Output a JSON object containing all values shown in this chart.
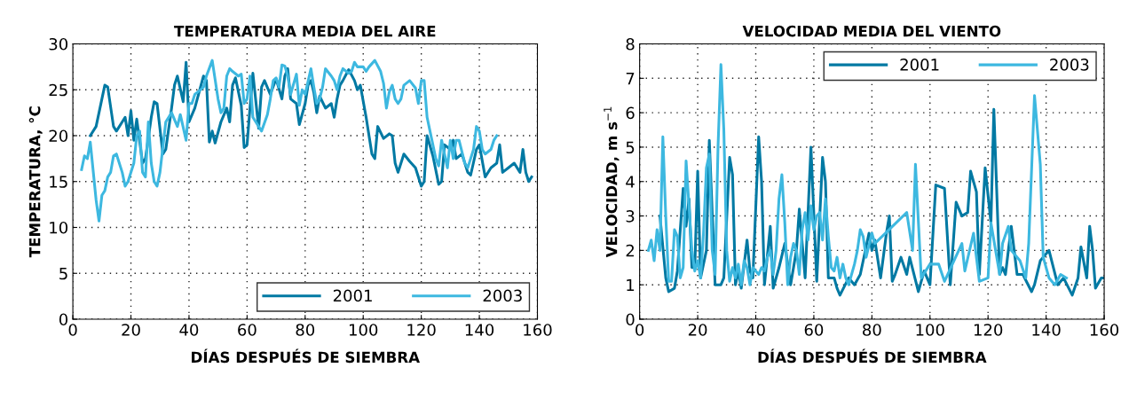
{
  "chart_data": [
    {
      "type": "line",
      "title": "TEMPERATURA MEDIA DEL AIRE",
      "xlabel": "DÍAS DESPUÉS DE SIEMBRA",
      "ylabel": "TEMPERATURA, °C",
      "xlim": [
        0,
        160
      ],
      "xticks": [
        0,
        20,
        40,
        60,
        80,
        100,
        120,
        140,
        160
      ],
      "ylim": [
        0,
        30
      ],
      "yticks": [
        0,
        5,
        10,
        15,
        20,
        25,
        30
      ],
      "grid": true,
      "legend": "bottom right",
      "line_style": "solid",
      "marker": "none",
      "series": [
        {
          "name": "2001",
          "color": "#0079a3",
          "x": [
            6,
            8,
            10,
            11,
            12,
            14,
            15,
            17,
            18,
            19,
            20,
            21,
            22,
            24,
            25,
            27,
            28,
            29,
            31,
            32,
            34,
            35,
            36,
            38,
            39,
            40,
            42,
            45,
            46,
            47,
            48,
            49,
            51,
            53,
            54,
            55,
            56,
            58,
            59,
            60,
            61,
            62,
            64,
            65,
            66,
            68,
            70,
            72,
            73,
            74,
            75,
            77,
            78,
            80,
            81,
            82,
            83,
            84,
            85,
            87,
            89,
            90,
            91,
            92,
            93,
            95,
            97,
            98,
            99,
            101,
            103,
            104,
            105,
            107,
            109,
            110,
            111,
            112,
            114,
            116,
            118,
            120,
            121,
            122,
            124,
            126,
            127,
            128,
            130,
            131,
            132,
            134,
            136,
            137,
            139,
            140,
            142,
            144,
            146,
            147,
            148,
            150,
            152,
            154,
            155,
            156,
            157,
            158
          ],
          "values": [
            20,
            21,
            24,
            25.5,
            25.3,
            21,
            20.5,
            21.5,
            22,
            20,
            22.7,
            19.5,
            21.8,
            17,
            17.5,
            22,
            23.7,
            23.5,
            18,
            18.5,
            23,
            25.5,
            26.5,
            23.7,
            28,
            21.5,
            23,
            26.5,
            26,
            19.3,
            20.5,
            19.2,
            21.5,
            23,
            21.5,
            25.5,
            26.3,
            23.3,
            18.7,
            19,
            23,
            26.8,
            20.8,
            25.3,
            26,
            24.5,
            26.2,
            24,
            26.5,
            27.3,
            24,
            23.5,
            21.2,
            23.5,
            25.5,
            26,
            24.7,
            22.5,
            24.3,
            23,
            23.5,
            22,
            24,
            25.5,
            26,
            27.2,
            26,
            25,
            25.5,
            22,
            18,
            17.5,
            21,
            19.7,
            20.2,
            20,
            17,
            16,
            18,
            17.2,
            16.5,
            14.5,
            15,
            20,
            17.8,
            14.7,
            15,
            19,
            18.5,
            19.5,
            17.5,
            18,
            16,
            15.7,
            18.5,
            19,
            15.5,
            16.5,
            17,
            19,
            16,
            16.5,
            17,
            16,
            18.5,
            16,
            15,
            15.5
          ]
        },
        {
          "name": "2003",
          "color": "#3db8e0",
          "x": [
            3,
            4,
            5,
            6,
            8,
            9,
            10,
            11,
            12,
            13,
            14,
            15,
            17,
            18,
            19,
            21,
            22,
            23,
            24,
            25,
            26,
            27,
            28,
            29,
            30,
            32,
            34,
            36,
            37,
            39,
            40,
            41,
            42,
            44,
            45,
            46,
            48,
            50,
            51,
            52,
            53,
            54,
            55,
            57,
            58,
            59,
            60,
            61,
            62,
            63,
            65,
            67,
            68,
            69,
            70,
            71,
            72,
            73,
            74,
            75,
            77,
            78,
            79,
            80,
            82,
            83,
            84,
            85,
            86,
            87,
            89,
            90,
            91,
            92,
            93,
            95,
            96,
            97,
            98,
            100,
            101,
            102,
            104,
            106,
            107,
            108,
            109,
            110,
            111,
            112,
            113,
            114,
            116,
            118,
            119,
            120,
            121,
            122,
            123,
            125,
            126,
            127,
            129,
            130,
            131,
            132,
            133,
            135,
            136,
            137,
            138,
            139,
            140,
            141,
            142,
            144,
            145,
            146
          ],
          "values": [
            16.3,
            17.8,
            17.5,
            19.3,
            13,
            10.7,
            13.5,
            14,
            15.5,
            16,
            17.8,
            18,
            16,
            14.5,
            15,
            17,
            20,
            20.5,
            16,
            15.5,
            21.5,
            17,
            15,
            14.5,
            16,
            21.5,
            22.5,
            21,
            22.3,
            19.5,
            23.5,
            23.5,
            24.5,
            25,
            25.3,
            26.5,
            28.2,
            24,
            22.5,
            23,
            26.5,
            27.3,
            27,
            26.5,
            26.7,
            23.5,
            24,
            26.5,
            22,
            21.5,
            20.5,
            22.3,
            24,
            26,
            26.3,
            25.3,
            27.7,
            27.6,
            26.5,
            24.5,
            26.7,
            23.3,
            25,
            24.5,
            27.3,
            25.3,
            23.5,
            24,
            25.3,
            27.3,
            26.5,
            26,
            25,
            26.5,
            27.3,
            26.8,
            27,
            28,
            27.5,
            27.5,
            27,
            27.5,
            28.2,
            27,
            25.7,
            23,
            24.8,
            25.5,
            24,
            23.5,
            24,
            25.5,
            26,
            25.2,
            23.5,
            26,
            26,
            22,
            20.5,
            17.5,
            16.7,
            19.5,
            16.5,
            19.5,
            17.5,
            19.5,
            19.5,
            17,
            16.5,
            17.5,
            18.5,
            21,
            20.5,
            18.5,
            18,
            18.5,
            19.5,
            20
          ]
        }
      ]
    },
    {
      "type": "line",
      "title": "VELOCIDAD MEDIA DEL VIENTO",
      "xlabel": "DÍAS DESPUÉS DE SIEMBRA",
      "ylabel": "VELOCIDAD, m s$^{−1}$",
      "xlim": [
        0,
        160
      ],
      "xticks": [
        0,
        20,
        40,
        60,
        80,
        100,
        120,
        140,
        160
      ],
      "ylim": [
        0,
        8
      ],
      "yticks": [
        0,
        1,
        2,
        3,
        4,
        5,
        6,
        7,
        8
      ],
      "grid": true,
      "legend": "top right",
      "line_style": "solid",
      "marker": "none",
      "series": [
        {
          "name": "2001",
          "color": "#0079a3",
          "x": [
            7,
            9,
            10,
            12,
            13,
            15,
            16,
            17,
            18,
            19,
            20,
            21,
            23,
            24,
            26,
            28,
            29,
            31,
            32,
            33,
            34,
            35,
            37,
            38,
            39,
            41,
            42,
            43,
            45,
            46,
            48,
            50,
            52,
            54,
            55,
            57,
            59,
            61,
            63,
            64,
            65,
            67,
            68,
            69,
            72,
            74,
            76,
            79,
            80,
            81,
            83,
            85,
            86,
            87,
            88,
            90,
            92,
            93,
            96,
            98,
            100,
            102,
            105,
            107,
            109,
            111,
            113,
            114,
            116,
            117,
            119,
            121,
            122,
            124,
            125,
            126,
            128,
            130,
            132,
            135,
            136,
            138,
            141,
            144,
            146,
            149,
            151,
            152,
            154,
            155,
            156,
            157,
            159,
            160
          ],
          "values": [
            3.0,
            1.2,
            0.8,
            0.9,
            1.4,
            3.8,
            2.7,
            3.5,
            1.5,
            1.5,
            4.3,
            1.2,
            2.0,
            5.2,
            1.0,
            1.0,
            1.2,
            4.7,
            4.2,
            1.0,
            1.4,
            0.9,
            2.3,
            1.4,
            1.2,
            5.3,
            4.0,
            1.0,
            2.7,
            0.9,
            1.5,
            2.2,
            1.0,
            2.0,
            3.2,
            1.2,
            5.0,
            1.1,
            4.7,
            4.0,
            1.2,
            1.2,
            0.9,
            0.7,
            1.2,
            1.0,
            1.3,
            2.5,
            2.0,
            2.3,
            1.2,
            2.5,
            3.0,
            1.1,
            1.3,
            1.8,
            1.3,
            1.8,
            0.8,
            1.4,
            1.0,
            3.9,
            3.8,
            1.0,
            3.4,
            3.0,
            3.1,
            4.3,
            3.7,
            1.3,
            4.4,
            2.8,
            6.1,
            1.3,
            1.5,
            1.3,
            2.7,
            1.3,
            1.3,
            0.8,
            1.0,
            1.7,
            2.0,
            1.0,
            1.2,
            0.7,
            1.2,
            2.1,
            1.2,
            2.7,
            2.0,
            0.9,
            1.2,
            1.2
          ]
        },
        {
          "name": "2003",
          "color": "#3db8e0",
          "x": [
            3,
            4,
            5,
            6,
            7,
            8,
            9,
            10,
            11,
            12,
            13,
            14,
            15,
            16,
            17,
            18,
            19,
            20,
            21,
            22,
            23,
            24,
            25,
            26,
            27,
            28,
            29,
            30,
            31,
            32,
            33,
            34,
            35,
            36,
            37,
            38,
            39,
            40,
            41,
            42,
            43,
            44,
            45,
            46,
            47,
            48,
            49,
            50,
            51,
            52,
            53,
            54,
            55,
            56,
            57,
            58,
            59,
            60,
            61,
            62,
            63,
            64,
            65,
            66,
            67,
            68,
            69,
            70,
            71,
            72,
            74,
            75,
            76,
            77,
            78,
            80,
            81,
            92,
            94,
            95,
            97,
            100,
            103,
            105,
            111,
            112,
            115,
            117,
            120,
            121,
            124,
            125,
            127,
            128,
            131,
            133,
            134,
            136,
            138,
            139,
            141,
            143,
            145,
            147
          ],
          "values": [
            2.0,
            2.3,
            1.7,
            2.6,
            2.0,
            5.3,
            3.0,
            1.1,
            1.1,
            2.6,
            2.4,
            1.2,
            1.5,
            4.6,
            3.3,
            2.0,
            1.4,
            1.7,
            1.2,
            2.5,
            4.4,
            4.8,
            2.0,
            1.3,
            5.0,
            7.4,
            5.5,
            2.0,
            1.1,
            1.5,
            1.2,
            1.6,
            1.0,
            1.7,
            1.5,
            1.0,
            1.5,
            1.4,
            1.3,
            1.5,
            1.4,
            1.8,
            2.0,
            1.3,
            2.0,
            3.5,
            4.2,
            2.8,
            1.0,
            1.8,
            2.2,
            2.0,
            1.3,
            2.6,
            3.1,
            2.3,
            3.3,
            2.6,
            3.0,
            3.1,
            2.3,
            3.5,
            2.4,
            1.5,
            1.4,
            1.8,
            1.2,
            1.6,
            1.2,
            1.0,
            1.6,
            2.0,
            2.6,
            2.4,
            1.8,
            2.5,
            2.2,
            3.1,
            2.0,
            4.5,
            1.2,
            1.6,
            1.6,
            1.1,
            2.2,
            1.4,
            2.5,
            1.1,
            1.2,
            2.8,
            1.3,
            2.2,
            2.7,
            2.0,
            1.7,
            1.2,
            2.2,
            6.5,
            4.5,
            1.8,
            1.2,
            1.0,
            1.3,
            1.2
          ]
        }
      ]
    }
  ]
}
